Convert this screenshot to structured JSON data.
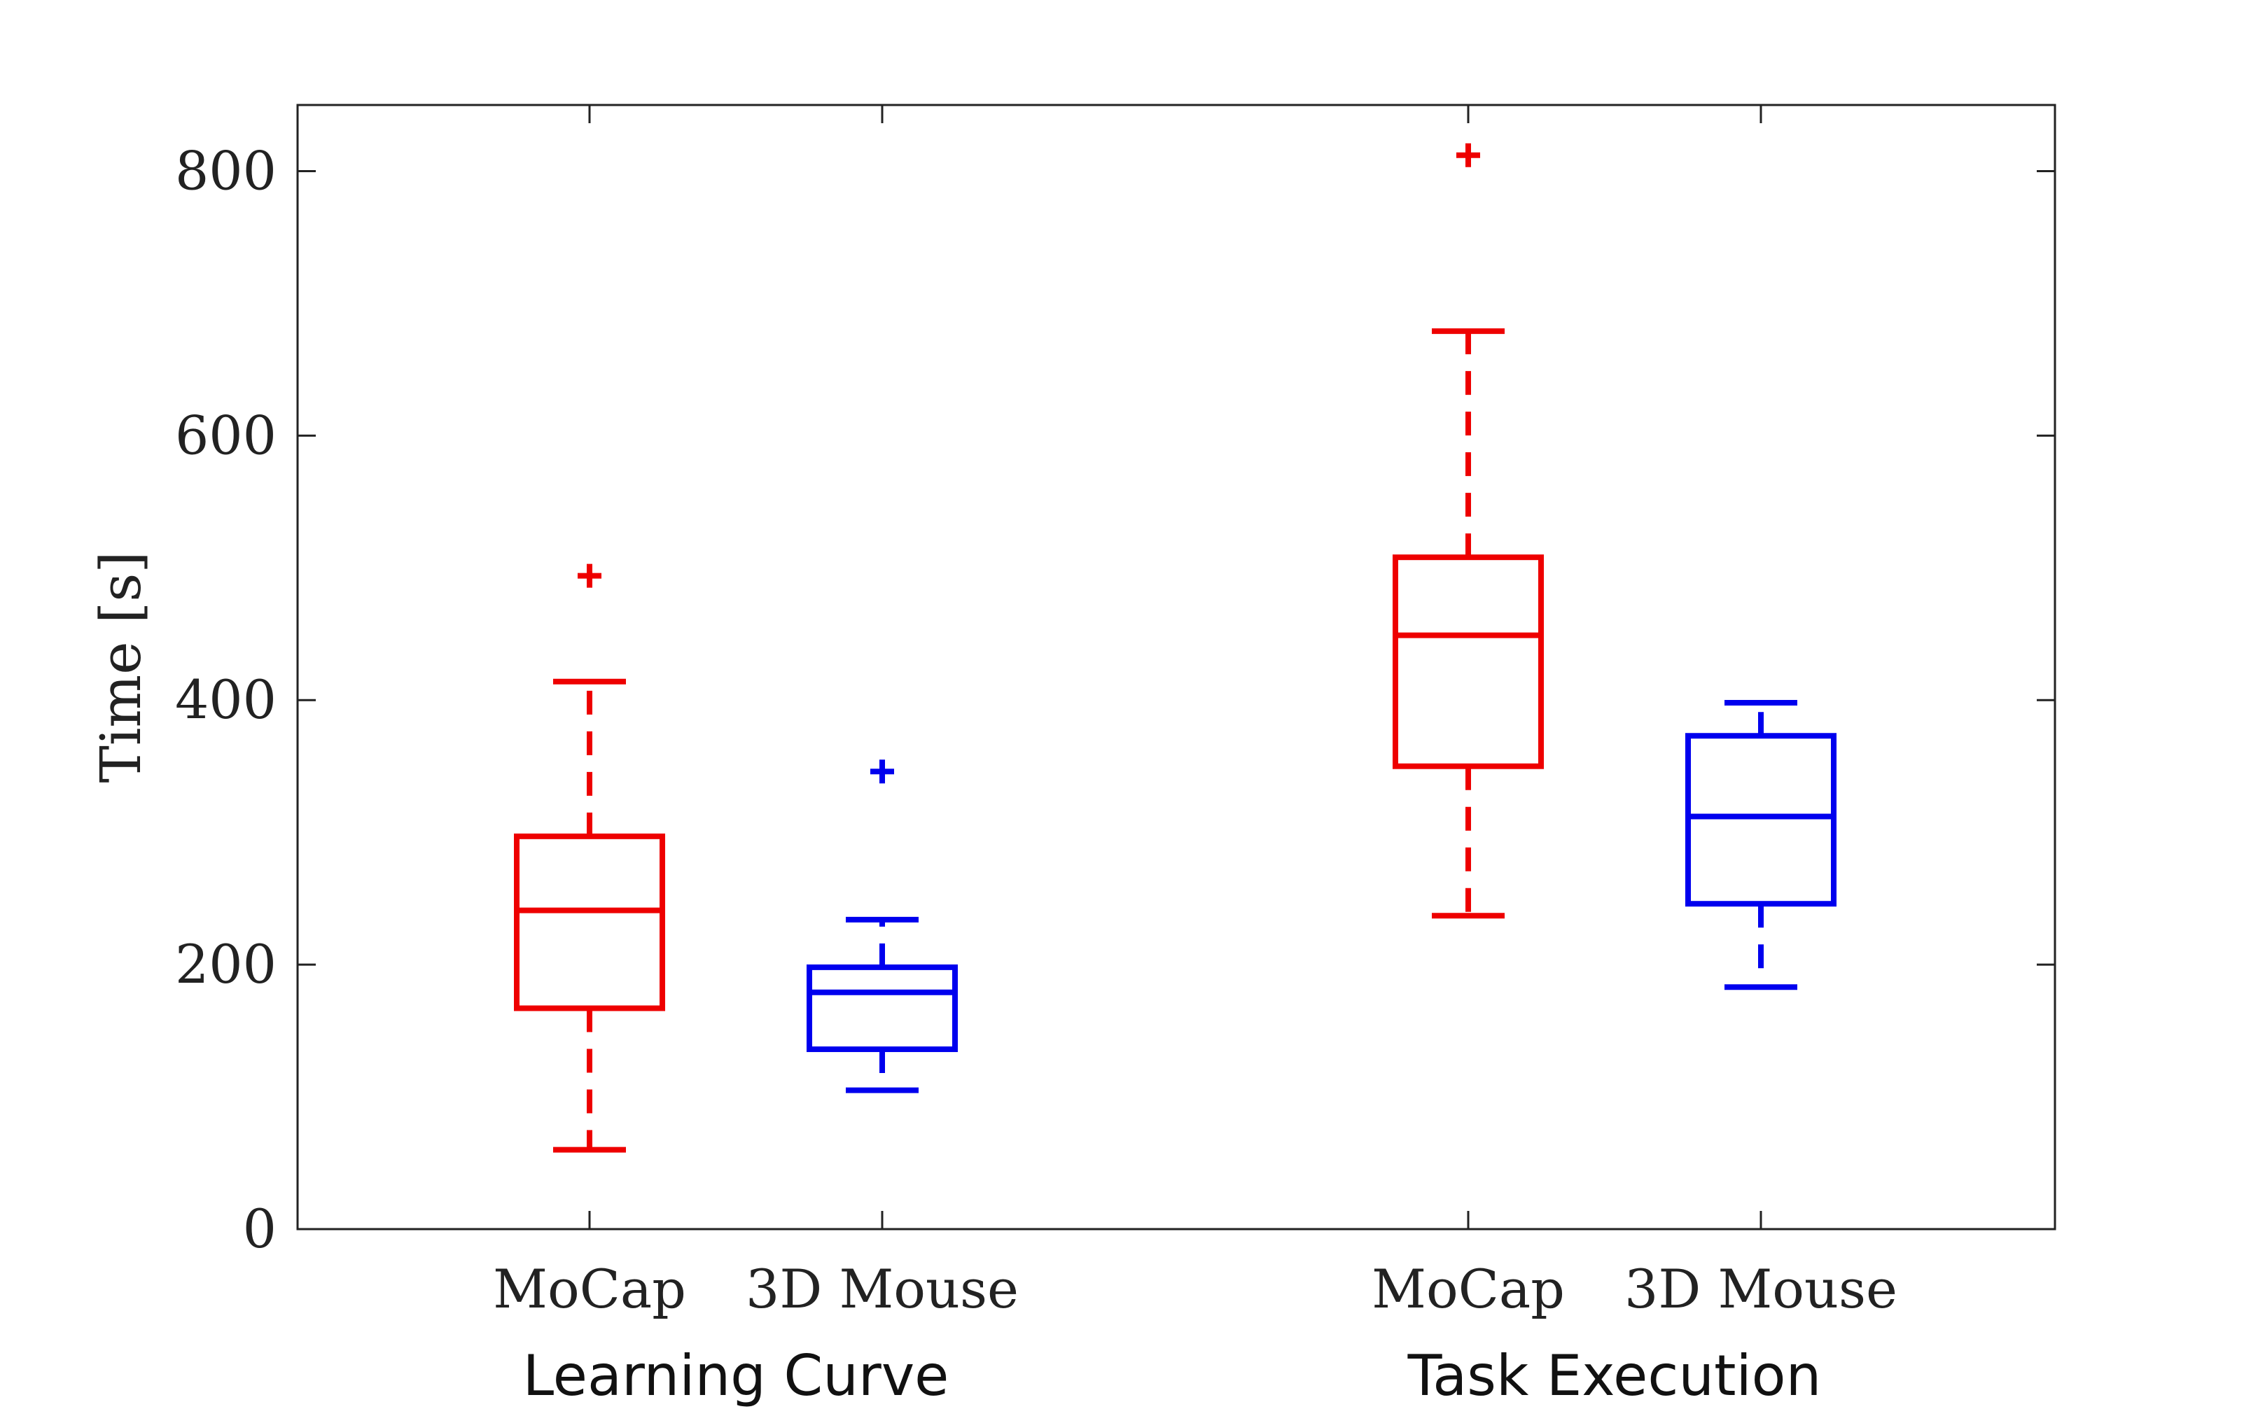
{
  "chart_data": {
    "type": "box",
    "ylabel": "Time [s]",
    "ylim": [
      0,
      850
    ],
    "yticks": [
      0,
      200,
      400,
      600,
      800
    ],
    "grid": false,
    "groups": [
      {
        "label": "Learning Curve",
        "boxes": [
          {
            "label": "MoCap",
            "color": "#ee0000",
            "whisker_low": 60,
            "q1": 167,
            "median": 241,
            "q3": 297,
            "whisker_high": 414,
            "outliers": [
              494
            ]
          },
          {
            "label": "3D Mouse",
            "color": "#0000ee",
            "whisker_low": 105,
            "q1": 136,
            "median": 179,
            "q3": 198,
            "whisker_high": 234,
            "outliers": [
              346
            ]
          }
        ]
      },
      {
        "label": "Task Execution",
        "boxes": [
          {
            "label": "MoCap",
            "color": "#ee0000",
            "whisker_low": 237,
            "q1": 350,
            "median": 449,
            "q3": 508,
            "whisker_high": 679,
            "outliers": [
              812
            ]
          },
          {
            "label": "3D Mouse",
            "color": "#0000ee",
            "whisker_low": 183,
            "q1": 246,
            "median": 312,
            "q3": 373,
            "whisker_high": 398,
            "outliers": []
          }
        ]
      }
    ]
  }
}
